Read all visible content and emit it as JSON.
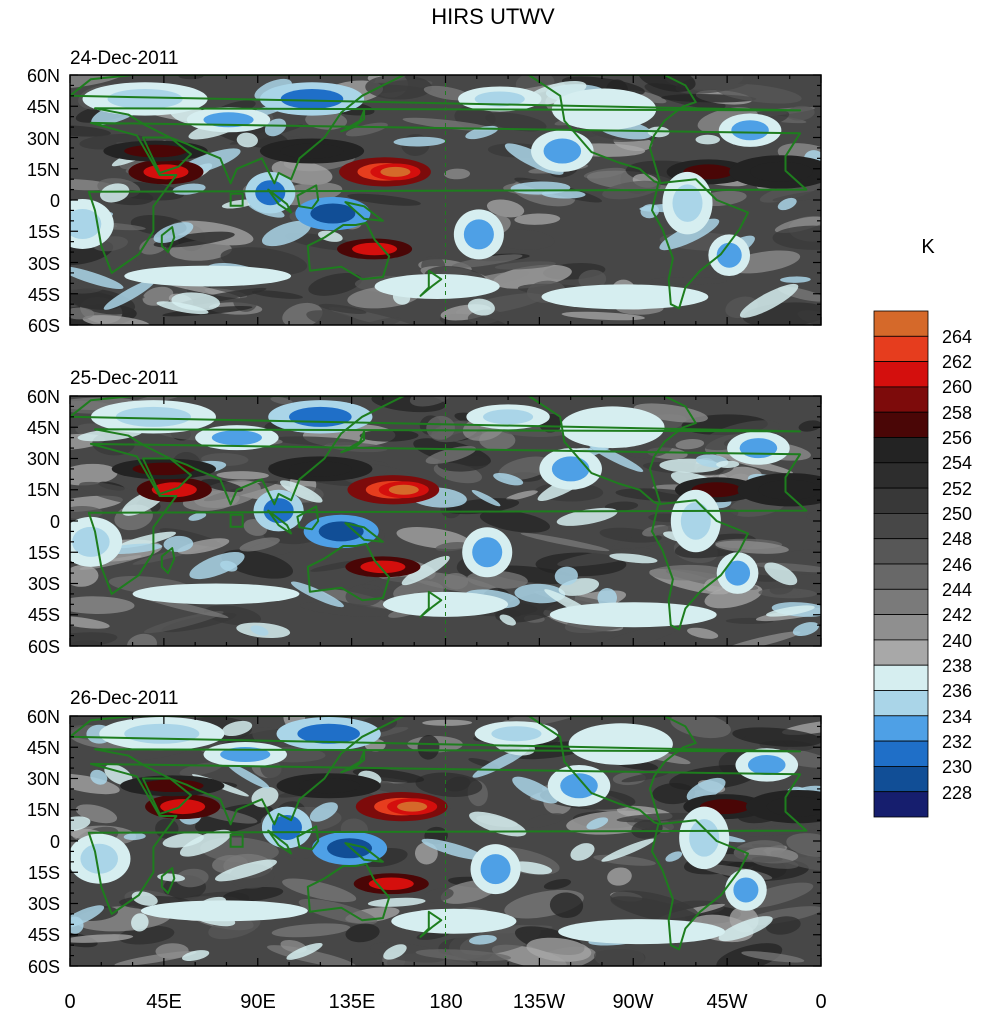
{
  "title": "HIRS UTWV",
  "panels": [
    {
      "date": "24-Dec-2011"
    },
    {
      "date": "25-Dec-2011"
    },
    {
      "date": "26-Dec-2011"
    }
  ],
  "lat_labels": [
    "60N",
    "45N",
    "30N",
    "15N",
    "0",
    "15S",
    "30S",
    "45S",
    "60S"
  ],
  "lon_labels": [
    "0",
    "45E",
    "90E",
    "135E",
    "180",
    "135W",
    "90W",
    "45W",
    "0"
  ],
  "colorbar": {
    "unit": "K",
    "labels": [
      "264",
      "262",
      "260",
      "258",
      "256",
      "254",
      "252",
      "250",
      "248",
      "246",
      "244",
      "242",
      "240",
      "238",
      "236",
      "234",
      "232",
      "230",
      "228"
    ],
    "colors": [
      "#d5692a",
      "#e63d1e",
      "#d40f0d",
      "#7d0b0b",
      "#4a0606",
      "#232323",
      "#2d2d2d",
      "#383838",
      "#474747",
      "#575757",
      "#686868",
      "#7a7a7a",
      "#8f8f8f",
      "#a8a8a8",
      "#d6eef0",
      "#aad5e8",
      "#4ea0e6",
      "#1f6fc8",
      "#114e96",
      "#161e6e"
    ]
  },
  "colors": {
    "coast": "#1e7d1e",
    "frame": "#000000"
  }
}
